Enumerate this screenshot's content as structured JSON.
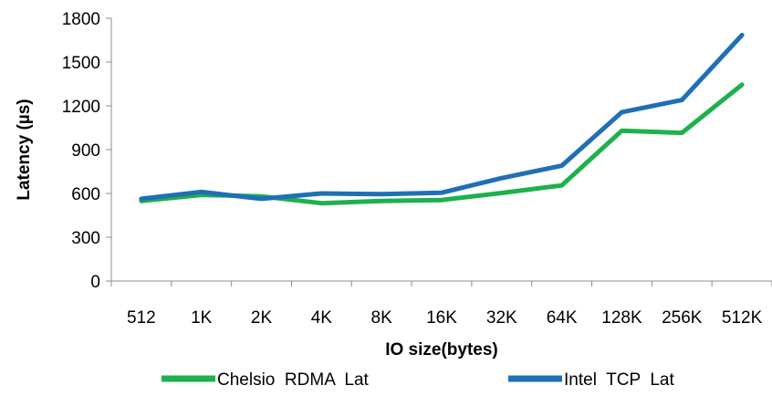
{
  "chart_data": {
    "type": "line",
    "categories": [
      "512",
      "1K",
      "2K",
      "4K",
      "8K",
      "16K",
      "32K",
      "64K",
      "128K",
      "256K",
      "512K"
    ],
    "series": [
      {
        "name": "Chelsio  RDMA  Lat",
        "color": "#1DB14B",
        "values": [
          548,
          590,
          580,
          533,
          548,
          555,
          603,
          655,
          1030,
          1015,
          1345
        ]
      },
      {
        "name": "Intel  TCP  Lat",
        "color": "#1F6FB6",
        "values": [
          563,
          610,
          563,
          600,
          595,
          605,
          705,
          790,
          1157,
          1240,
          1685
        ]
      }
    ],
    "xlabel": "IO size(bytes)",
    "ylabel": "Latency (µs)",
    "ylim": [
      0,
      1800
    ],
    "yticks": [
      0,
      300,
      600,
      900,
      1200,
      1500,
      1800
    ],
    "ytick_labels": [
      "0",
      "300",
      "600",
      "900",
      "1200",
      "1500",
      "1800"
    ],
    "grid": false,
    "legend_position": "bottom"
  }
}
